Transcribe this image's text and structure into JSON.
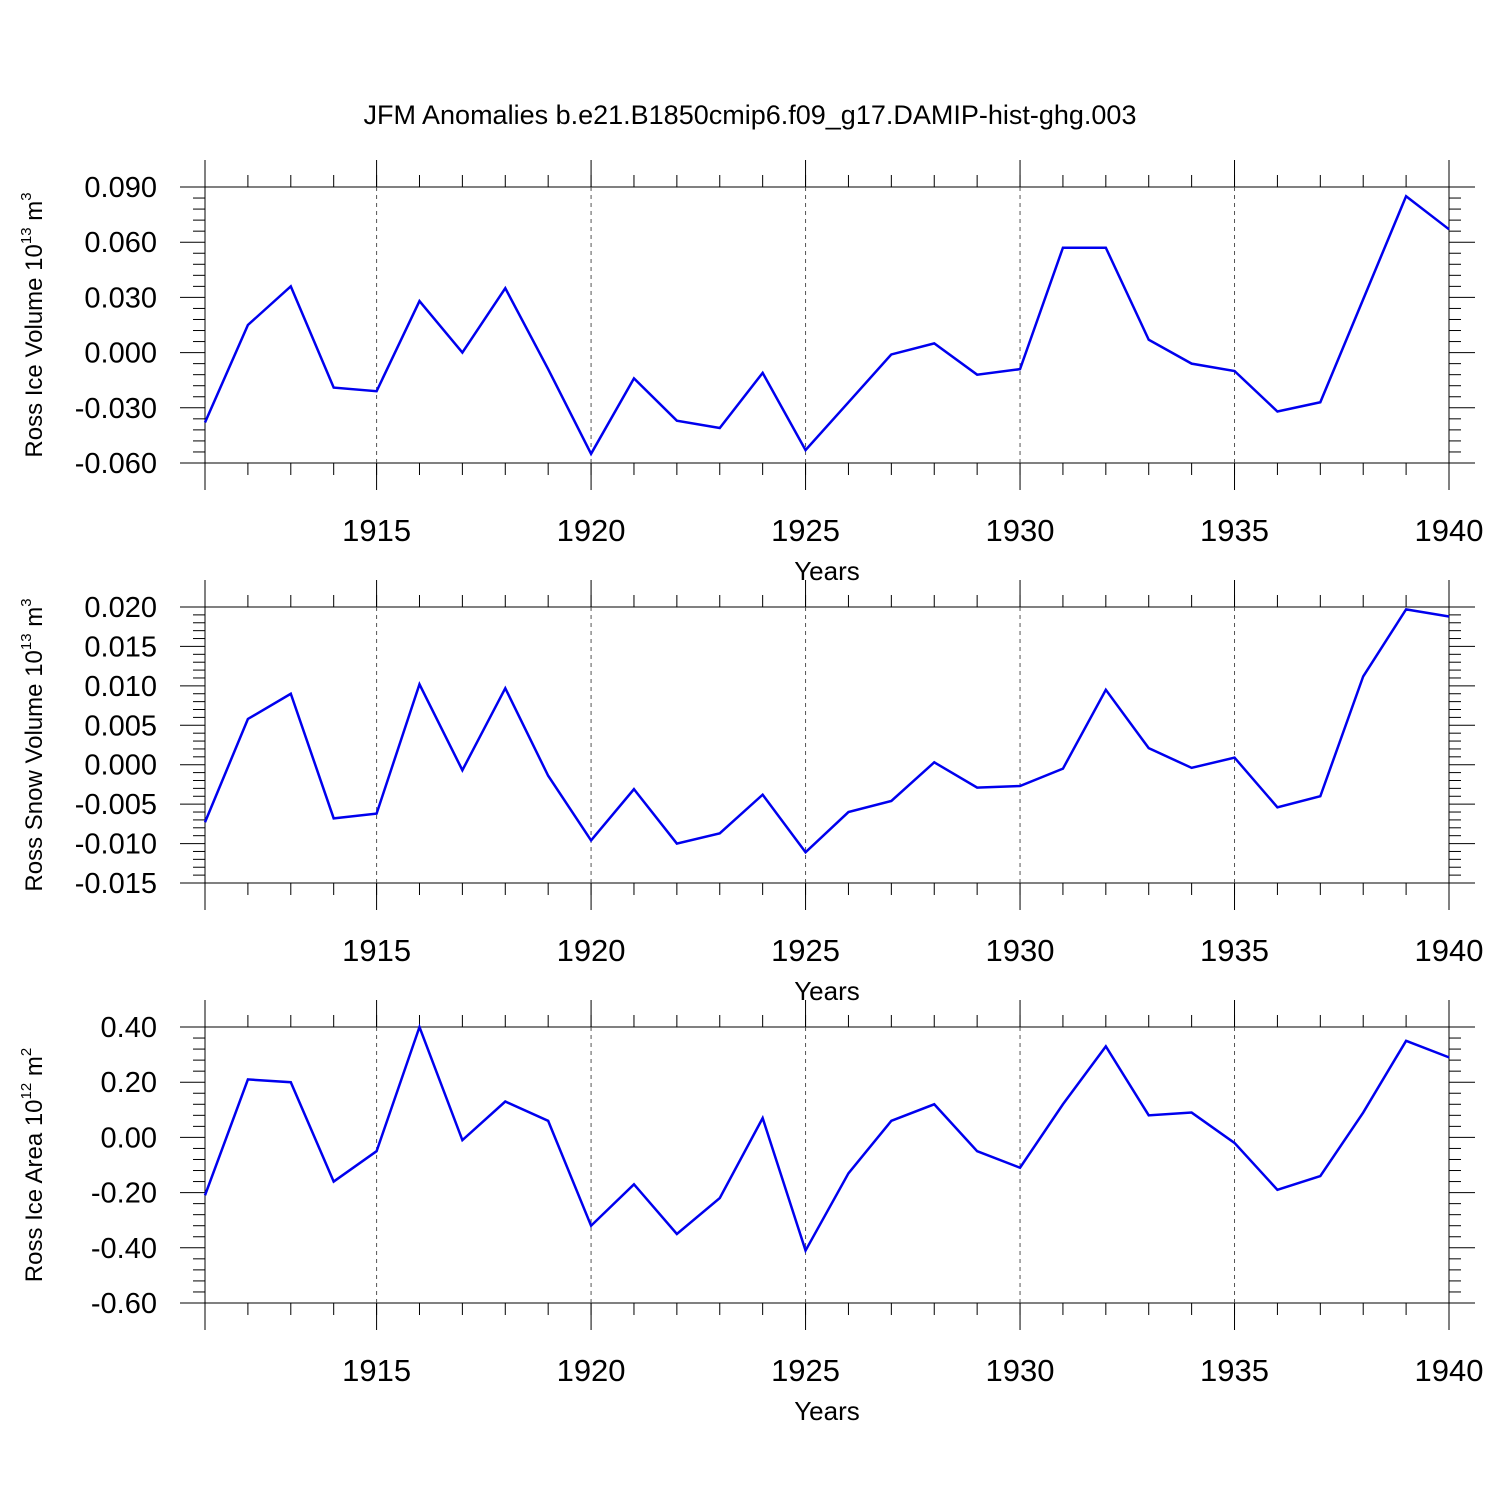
{
  "figure": {
    "title": "JFM Anomalies b.e21.B1850cmip6.f09_g17.DAMIP-hist-ghg.003",
    "line_color": "#0000ee",
    "grid": "dashed vertical at major x ticks"
  },
  "chart_data": [
    {
      "type": "line",
      "ylabel": {
        "main": "Ross Ice Volume 10",
        "sup": "13",
        "unit": " m",
        "unit_sup": "3"
      },
      "xlabel": "Years",
      "xlim": [
        1911,
        1940
      ],
      "ylim": [
        -0.06,
        0.09
      ],
      "x_ticks": [
        1915,
        1920,
        1925,
        1930,
        1935,
        1940
      ],
      "x_ticklabels": [
        "1915",
        "1920",
        "1925",
        "1930",
        "1935",
        "1940"
      ],
      "y_ticks": [
        -0.06,
        -0.03,
        0.0,
        0.03,
        0.06,
        0.09
      ],
      "y_ticklabels": [
        "-0.060",
        "-0.030",
        "0.000",
        "0.030",
        "0.060",
        "0.090"
      ],
      "x": [
        1911,
        1912,
        1913,
        1914,
        1915,
        1916,
        1917,
        1918,
        1919,
        1920,
        1921,
        1922,
        1923,
        1924,
        1925,
        1926,
        1927,
        1928,
        1929,
        1930,
        1931,
        1932,
        1933,
        1934,
        1935,
        1936,
        1937,
        1938,
        1939,
        1940
      ],
      "y": [
        -0.038,
        0.015,
        0.036,
        -0.019,
        -0.021,
        0.028,
        0.0,
        0.035,
        -0.009,
        -0.055,
        -0.014,
        -0.037,
        -0.041,
        -0.011,
        -0.053,
        -0.027,
        -0.001,
        0.005,
        -0.012,
        -0.009,
        0.057,
        0.057,
        0.007,
        -0.006,
        -0.01,
        -0.032,
        -0.027,
        0.029,
        0.085,
        0.067
      ]
    },
    {
      "type": "line",
      "ylabel": {
        "main": "Ross Snow Volume 10",
        "sup": "13",
        "unit": " m",
        "unit_sup": "3"
      },
      "xlabel": "Years",
      "xlim": [
        1911,
        1940
      ],
      "ylim": [
        -0.015,
        0.02
      ],
      "x_ticks": [
        1915,
        1920,
        1925,
        1930,
        1935,
        1940
      ],
      "x_ticklabels": [
        "1915",
        "1920",
        "1925",
        "1930",
        "1935",
        "1940"
      ],
      "y_ticks": [
        -0.015,
        -0.01,
        -0.005,
        0.0,
        0.005,
        0.01,
        0.015,
        0.02
      ],
      "y_ticklabels": [
        "-0.015",
        "-0.010",
        "-0.005",
        "0.000",
        "0.005",
        "0.010",
        "0.015",
        "0.020"
      ],
      "x": [
        1911,
        1912,
        1913,
        1914,
        1915,
        1916,
        1917,
        1918,
        1919,
        1920,
        1921,
        1922,
        1923,
        1924,
        1925,
        1926,
        1927,
        1928,
        1929,
        1930,
        1931,
        1932,
        1933,
        1934,
        1935,
        1936,
        1937,
        1938,
        1939,
        1940
      ],
      "y": [
        -0.0073,
        0.0058,
        0.009,
        -0.0068,
        -0.0062,
        0.0102,
        -0.0007,
        0.0097,
        -0.0014,
        -0.0096,
        -0.0031,
        -0.01,
        -0.0087,
        -0.0038,
        -0.0111,
        -0.006,
        -0.0046,
        0.0003,
        -0.0029,
        -0.0027,
        -0.0005,
        0.0095,
        0.0021,
        -0.0004,
        0.0009,
        -0.0054,
        -0.004,
        0.0112,
        0.0197,
        0.0188
      ]
    },
    {
      "type": "line",
      "ylabel": {
        "main": "Ross Ice Area 10",
        "sup": "12",
        "unit": " m",
        "unit_sup": "2"
      },
      "xlabel": "Years",
      "xlim": [
        1911,
        1940
      ],
      "ylim": [
        -0.6,
        0.4
      ],
      "x_ticks": [
        1915,
        1920,
        1925,
        1930,
        1935,
        1940
      ],
      "x_ticklabels": [
        "1915",
        "1920",
        "1925",
        "1930",
        "1935",
        "1940"
      ],
      "y_ticks": [
        -0.6,
        -0.4,
        -0.2,
        0.0,
        0.2,
        0.4
      ],
      "y_ticklabels": [
        "-0.60",
        "-0.40",
        "-0.20",
        "0.00",
        "0.20",
        "0.40"
      ],
      "x": [
        1911,
        1912,
        1913,
        1914,
        1915,
        1916,
        1917,
        1918,
        1919,
        1920,
        1921,
        1922,
        1923,
        1924,
        1925,
        1926,
        1927,
        1928,
        1929,
        1930,
        1931,
        1932,
        1933,
        1934,
        1935,
        1936,
        1937,
        1938,
        1939,
        1940
      ],
      "y": [
        -0.21,
        0.21,
        0.2,
        -0.16,
        -0.05,
        0.4,
        -0.01,
        0.13,
        0.06,
        -0.32,
        -0.17,
        -0.35,
        -0.22,
        0.07,
        -0.41,
        -0.13,
        0.06,
        0.12,
        -0.05,
        -0.11,
        0.12,
        0.33,
        0.08,
        0.09,
        -0.02,
        -0.19,
        -0.14,
        0.09,
        0.35,
        0.29
      ]
    }
  ]
}
